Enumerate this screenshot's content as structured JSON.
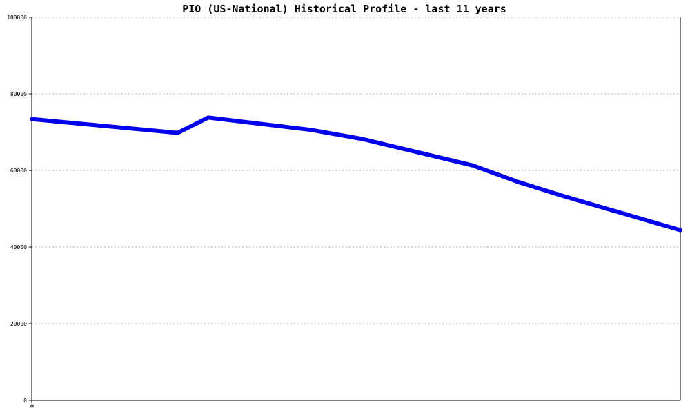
{
  "chart_data": {
    "type": "line",
    "title": "PIO (US-National) Historical Profile - last 11 years",
    "xlabel": "",
    "ylabel": "",
    "x_tick_labels": [
      "0"
    ],
    "y_ticks": [
      0,
      20000,
      40000,
      60000,
      80000,
      100000
    ],
    "y_tick_labels": [
      "0",
      "20000",
      "40000",
      "60000",
      "80000",
      "100000"
    ],
    "ylim": [
      0,
      100000
    ],
    "xlim": [
      0,
      1
    ],
    "grid": true,
    "colors": {
      "line": "#0000ee",
      "grid": "#b0b0b0",
      "axis": "#000000"
    },
    "series": [
      {
        "x": [
          0,
          0.225,
          0.272,
          0.43,
          0.51,
          0.68,
          0.75,
          0.82,
          1.0
        ],
        "y": [
          73400,
          69800,
          73800,
          70600,
          68200,
          61300,
          57000,
          53300,
          44400
        ]
      }
    ]
  }
}
